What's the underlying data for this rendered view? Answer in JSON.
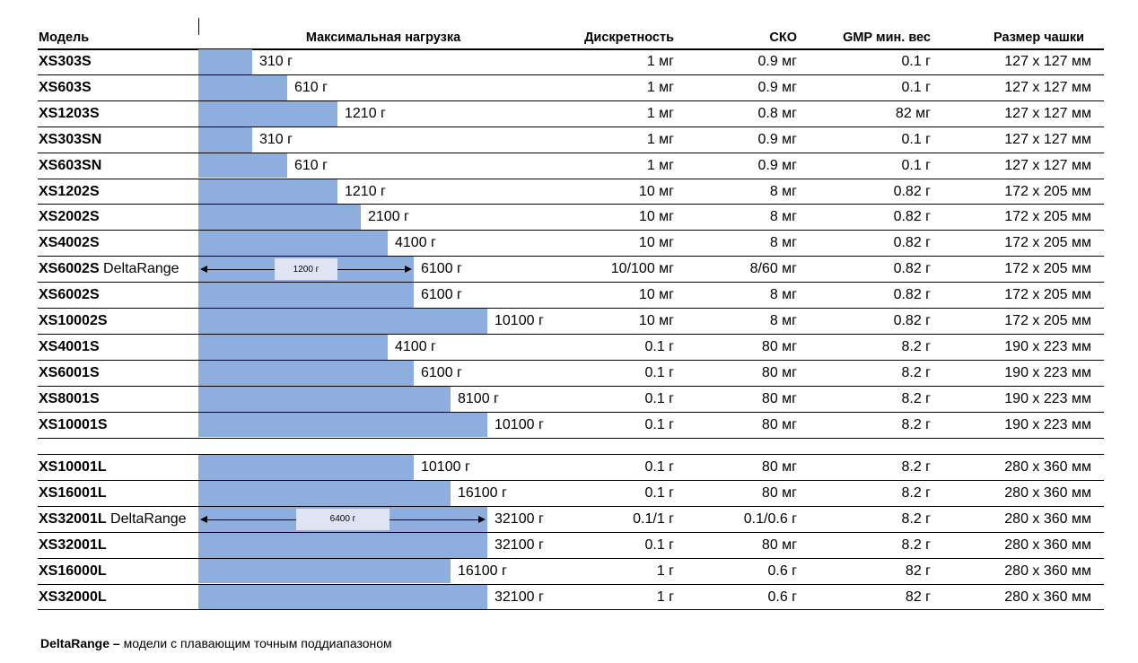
{
  "headers": {
    "model": "Модель",
    "max_load": "Максимальная нагрузка",
    "readability": "Дискретность",
    "sd": "СКО",
    "gmp": "GMP мин. вес",
    "pan": "Размер чашки"
  },
  "group1": [
    {
      "model": "XS303S",
      "suffix": "",
      "capacity": "310 г",
      "capacity_g": 310,
      "readability": "1 мг",
      "sd": "0.9 мг",
      "gmp": "0.1 г",
      "pan": "127 x 127 мм"
    },
    {
      "model": "XS603S",
      "suffix": "",
      "capacity": "610 г",
      "capacity_g": 610,
      "readability": "1 мг",
      "sd": "0.9 мг",
      "gmp": "0.1 г",
      "pan": "127 x 127 мм"
    },
    {
      "model": "XS1203S",
      "suffix": "",
      "capacity": "1210 г",
      "capacity_g": 1210,
      "readability": "1 мг",
      "sd": "0.8 мг",
      "gmp": "82 мг",
      "pan": "127 x 127 мм"
    },
    {
      "model": "XS303SN",
      "suffix": "",
      "capacity": "310 г",
      "capacity_g": 310,
      "readability": "1 мг",
      "sd": "0.9 мг",
      "gmp": "0.1 г",
      "pan": "127 x 127 мм"
    },
    {
      "model": "XS603SN",
      "suffix": "",
      "capacity": "610 г",
      "capacity_g": 610,
      "readability": "1 мг",
      "sd": "0.9 мг",
      "gmp": "0.1 г",
      "pan": "127 x 127 мм"
    },
    {
      "model": "XS1202S",
      "suffix": "",
      "capacity": "1210 г",
      "capacity_g": 1210,
      "readability": "10 мг",
      "sd": "8 мг",
      "gmp": "0.82 г",
      "pan": "172 x 205 мм"
    },
    {
      "model": "XS2002S",
      "suffix": "",
      "capacity": "2100 г",
      "capacity_g": 2100,
      "readability": "10 мг",
      "sd": "8 мг",
      "gmp": "0.82 г",
      "pan": "172 x 205 мм"
    },
    {
      "model": "XS4002S",
      "suffix": "",
      "capacity": "4100 г",
      "capacity_g": 4100,
      "readability": "10 мг",
      "sd": "8 мг",
      "gmp": "0.82 г",
      "pan": "172 x 205 мм"
    },
    {
      "model": "XS6002S",
      "suffix": " DeltaRange",
      "capacity": "6100 г",
      "capacity_g": 6100,
      "readability": "10/100 мг",
      "sd": "8/60 мг",
      "gmp": "0.82 г",
      "pan": "172 x 205 мм",
      "delta": "1200 г",
      "delta_g": 1200
    },
    {
      "model": "XS6002S",
      "suffix": "",
      "capacity": "6100 г",
      "capacity_g": 6100,
      "readability": "10 мг",
      "sd": "8 мг",
      "gmp": "0.82 г",
      "pan": "172 x 205 мм"
    },
    {
      "model": "XS10002S",
      "suffix": "",
      "capacity": "10100 г",
      "capacity_g": 10100,
      "readability": "10 мг",
      "sd": "8 мг",
      "gmp": "0.82 г",
      "pan": "172 x 205 мм"
    },
    {
      "model": "XS4001S",
      "suffix": "",
      "capacity": "4100 г",
      "capacity_g": 4100,
      "readability": "0.1 г",
      "sd": "80 мг",
      "gmp": "8.2 г",
      "pan": "190 x 223 мм"
    },
    {
      "model": "XS6001S",
      "suffix": "",
      "capacity": "6100 г",
      "capacity_g": 6100,
      "readability": "0.1 г",
      "sd": "80 мг",
      "gmp": "8.2 г",
      "pan": "190 x 223 мм"
    },
    {
      "model": "XS8001S",
      "suffix": "",
      "capacity": "8100 г",
      "capacity_g": 8100,
      "readability": "0.1 г",
      "sd": "80 мг",
      "gmp": "8.2 г",
      "pan": "190 x 223 мм"
    },
    {
      "model": "XS10001S",
      "suffix": "",
      "capacity": "10100 г",
      "capacity_g": 10100,
      "readability": "0.1 г",
      "sd": "80 мг",
      "gmp": "8.2 г",
      "pan": "190 x 223 мм"
    }
  ],
  "group2": [
    {
      "model": "XS10001L",
      "suffix": "",
      "capacity": "10100 г",
      "capacity_g": 10100,
      "readability": "0.1 г",
      "sd": "80 мг",
      "gmp": "8.2 г",
      "pan": "280 x 360 мм"
    },
    {
      "model": "XS16001L",
      "suffix": "",
      "capacity": "16100 г",
      "capacity_g": 16100,
      "readability": "0.1 г",
      "sd": "80 мг",
      "gmp": "8.2 г",
      "pan": "280 x 360 мм"
    },
    {
      "model": "XS32001L",
      "suffix": " DeltaRange",
      "capacity": "32100 г",
      "capacity_g": 32100,
      "readability": "0.1/1 г",
      "sd": "0.1/0.6 г",
      "gmp": "8.2 г",
      "pan": "280 x 360 мм",
      "delta": "6400 г",
      "delta_g": 6400
    },
    {
      "model": "XS32001L",
      "suffix": "",
      "capacity": "32100 г",
      "capacity_g": 32100,
      "readability": "0.1 г",
      "sd": "80 мг",
      "gmp": "8.2 г",
      "pan": "280 x 360 мм"
    },
    {
      "model": "XS16000L",
      "suffix": "",
      "capacity": "16100 г",
      "capacity_g": 16100,
      "readability": "1 г",
      "sd": "0.6 г",
      "gmp": "82 г",
      "pan": "280 x 360 мм"
    },
    {
      "model": "XS32000L",
      "suffix": "",
      "capacity": "32100 г",
      "capacity_g": 32100,
      "readability": "1 г",
      "sd": "0.6 г",
      "gmp": "82 г",
      "pan": "280 x 360 мм"
    }
  ],
  "footnote": {
    "term": "DeltaRange –",
    "text": " модели с плавающим точным поддиапазоном"
  },
  "colors": {
    "bar": "#8eafde",
    "delta_box": "#dee4f4"
  }
}
